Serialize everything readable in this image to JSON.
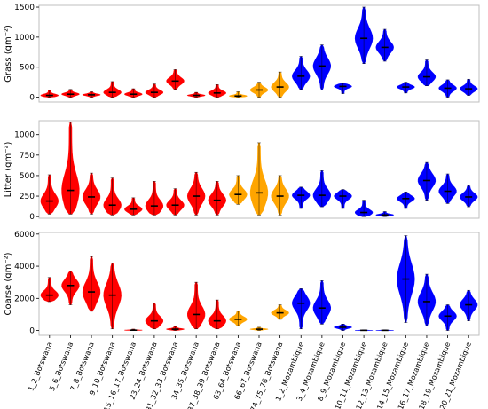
{
  "colors": {
    "Botswana_red": "#ff0000",
    "Botswana_orange": "#ffa500",
    "Mozambique": "#0000ff",
    "median": "#000000"
  },
  "chart_data": {
    "type": "violin",
    "categories": [
      "1_2_Botswana",
      "5_6_Botswana",
      "7_8_Botswana",
      "9_10_Botswana",
      "15_16_17_Botswana",
      "23_24_Botswana",
      "31_32_33_Botswana",
      "34_35_Botswana",
      "37_38_39_Botswana",
      "63_64_Botswana",
      "66_67_Botswana",
      "74_75_76_Botswana",
      "1_2_Mozambique",
      "3_4_Mozambique",
      "8_9_Mozambique",
      "10_11_Mozambique",
      "12_13_Mozambique",
      "14_15_Mozambique",
      "16_17_Mozambique",
      "18_19_Mozambique",
      "20_21_Mozambique"
    ],
    "category_colors": [
      "red",
      "red",
      "red",
      "red",
      "red",
      "red",
      "red",
      "red",
      "red",
      "orange",
      "orange",
      "orange",
      "blue",
      "blue",
      "blue",
      "blue",
      "blue",
      "blue",
      "blue",
      "blue",
      "blue"
    ],
    "panels": [
      {
        "ylabel": "Grass (gm⁻²)",
        "ylim": [
          -80,
          1530
        ],
        "yticks": [
          0,
          500,
          1000,
          1500
        ],
        "series": [
          {
            "min": 0,
            "median": 30,
            "max": 120
          },
          {
            "min": 0,
            "median": 50,
            "max": 130
          },
          {
            "min": 0,
            "median": 40,
            "max": 90
          },
          {
            "min": 0,
            "median": 80,
            "max": 260
          },
          {
            "min": 0,
            "median": 50,
            "max": 140
          },
          {
            "min": 0,
            "median": 80,
            "max": 220
          },
          {
            "min": 130,
            "median": 270,
            "max": 460
          },
          {
            "min": 0,
            "median": 30,
            "max": 80
          },
          {
            "min": 0,
            "median": 70,
            "max": 210
          },
          {
            "min": 0,
            "median": 20,
            "max": 90
          },
          {
            "min": 0,
            "median": 120,
            "max": 250
          },
          {
            "min": 0,
            "median": 170,
            "max": 420
          },
          {
            "min": 130,
            "median": 350,
            "max": 680
          },
          {
            "min": 120,
            "median": 520,
            "max": 870
          },
          {
            "min": 60,
            "median": 180,
            "max": 230
          },
          {
            "min": 560,
            "median": 980,
            "max": 1500
          },
          {
            "min": 600,
            "median": 830,
            "max": 1130
          },
          {
            "min": 70,
            "median": 170,
            "max": 250
          },
          {
            "min": 190,
            "median": 340,
            "max": 620
          },
          {
            "min": 0,
            "median": 150,
            "max": 290
          },
          {
            "min": 30,
            "median": 140,
            "max": 300
          }
        ]
      },
      {
        "ylabel": "Litter (gm⁻²)",
        "ylim": [
          -20,
          1170
        ],
        "yticks": [
          0,
          250,
          500,
          750,
          1000
        ],
        "series": [
          {
            "min": 30,
            "median": 190,
            "max": 510
          },
          {
            "min": 30,
            "median": 320,
            "max": 1150
          },
          {
            "min": 30,
            "median": 240,
            "max": 530
          },
          {
            "min": 20,
            "median": 140,
            "max": 470
          },
          {
            "min": 20,
            "median": 90,
            "max": 230
          },
          {
            "min": 20,
            "median": 130,
            "max": 430
          },
          {
            "min": 20,
            "median": 140,
            "max": 340
          },
          {
            "min": 20,
            "median": 250,
            "max": 540
          },
          {
            "min": 20,
            "median": 200,
            "max": 430
          },
          {
            "min": 150,
            "median": 270,
            "max": 500
          },
          {
            "min": 20,
            "median": 290,
            "max": 900
          },
          {
            "min": 20,
            "median": 250,
            "max": 500
          },
          {
            "min": 100,
            "median": 260,
            "max": 360
          },
          {
            "min": 120,
            "median": 260,
            "max": 560
          },
          {
            "min": 100,
            "median": 250,
            "max": 330
          },
          {
            "min": 0,
            "median": 50,
            "max": 200
          },
          {
            "min": 0,
            "median": 20,
            "max": 60
          },
          {
            "min": 100,
            "median": 220,
            "max": 300
          },
          {
            "min": 200,
            "median": 440,
            "max": 660
          },
          {
            "min": 160,
            "median": 310,
            "max": 520
          },
          {
            "min": 120,
            "median": 240,
            "max": 380
          }
        ]
      },
      {
        "ylabel": "Coarse (gm⁻²)",
        "ylim": [
          -300,
          6100
        ],
        "yticks": [
          0,
          2000,
          4000,
          6000
        ],
        "series": [
          {
            "min": 1800,
            "median": 2200,
            "max": 3300
          },
          {
            "min": 1600,
            "median": 2800,
            "max": 3700
          },
          {
            "min": 1200,
            "median": 2400,
            "max": 4600
          },
          {
            "min": 100,
            "median": 2200,
            "max": 4200
          },
          {
            "min": 0,
            "median": 20,
            "max": 80
          },
          {
            "min": 100,
            "median": 600,
            "max": 1700
          },
          {
            "min": 0,
            "median": 80,
            "max": 250
          },
          {
            "min": 100,
            "median": 1000,
            "max": 3000
          },
          {
            "min": 100,
            "median": 600,
            "max": 1900
          },
          {
            "min": 300,
            "median": 700,
            "max": 1200
          },
          {
            "min": 0,
            "median": 80,
            "max": 200
          },
          {
            "min": 700,
            "median": 1100,
            "max": 1600
          },
          {
            "min": 100,
            "median": 1700,
            "max": 2600
          },
          {
            "min": 400,
            "median": 1400,
            "max": 3100
          },
          {
            "min": 0,
            "median": 200,
            "max": 400
          },
          {
            "min": 0,
            "median": 10,
            "max": 40
          },
          {
            "min": 0,
            "median": 10,
            "max": 40
          },
          {
            "min": 500,
            "median": 3200,
            "max": 5900
          },
          {
            "min": 300,
            "median": 1800,
            "max": 3500
          },
          {
            "min": 0,
            "median": 900,
            "max": 1600
          },
          {
            "min": 600,
            "median": 1600,
            "max": 2500
          }
        ]
      }
    ]
  }
}
